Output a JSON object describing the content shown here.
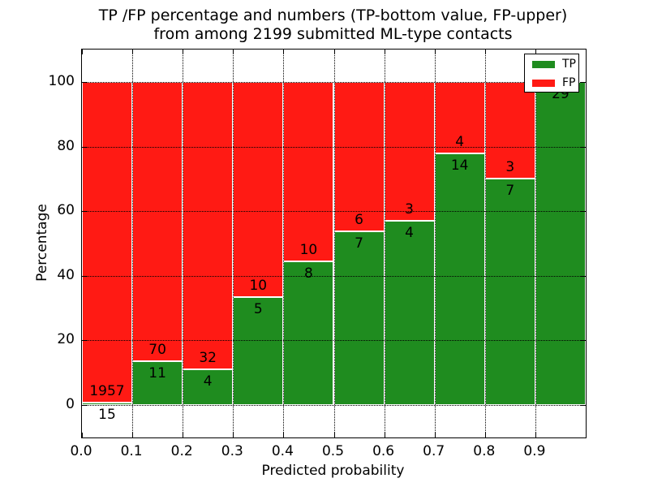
{
  "figure": {
    "title_line1": "TP /FP percentage and numbers (TP-bottom value, FP-upper)",
    "title_line2": "from among 2199 submitted ML-type contacts"
  },
  "axes": {
    "xlabel": "Predicted probability",
    "ylabel": "Percentage",
    "x_tick_labels": [
      "0.0",
      "0.1",
      "0.2",
      "0.3",
      "0.4",
      "0.5",
      "0.6",
      "0.7",
      "0.8",
      "0.9"
    ],
    "x_tick_values": [
      0.0,
      0.1,
      0.2,
      0.3,
      0.4,
      0.5,
      0.6,
      0.7,
      0.8,
      0.9
    ],
    "y_tick_labels": [
      "0",
      "20",
      "40",
      "60",
      "80",
      "100"
    ],
    "y_tick_values": [
      0,
      20,
      40,
      60,
      80,
      100
    ],
    "xlim": [
      0.0,
      1.0
    ],
    "ylim": [
      -10,
      110
    ],
    "grid_style": "dotted"
  },
  "legend": {
    "position": "upper-right",
    "items": [
      {
        "label": "TP",
        "color": "#1f8c1f"
      },
      {
        "label": "FP",
        "color": "#ff1a14"
      }
    ]
  },
  "chart_data": {
    "type": "bar",
    "stacked": true,
    "normalized": "each bin scaled to 100%",
    "title": "TP /FP percentage and numbers (TP-bottom value, FP-upper) from among 2199 submitted ML-type contacts",
    "xlabel": "Predicted probability",
    "ylabel": "Percentage",
    "total_submitted": 2199,
    "bin_width": 0.1,
    "bin_starts": [
      0.0,
      0.1,
      0.2,
      0.3,
      0.4,
      0.5,
      0.6,
      0.7,
      0.8,
      0.9
    ],
    "series": [
      {
        "name": "TP",
        "color": "#1f8c1f",
        "counts": [
          15,
          11,
          4,
          5,
          8,
          7,
          4,
          14,
          7,
          29
        ],
        "pct": [
          0.76,
          13.58,
          11.11,
          33.33,
          44.44,
          53.85,
          57.14,
          77.78,
          70.0,
          100.0
        ]
      },
      {
        "name": "FP",
        "color": "#ff1a14",
        "counts": [
          1957,
          70,
          32,
          10,
          10,
          6,
          3,
          4,
          3,
          0
        ],
        "pct": [
          99.24,
          86.42,
          88.89,
          66.67,
          55.56,
          46.15,
          42.86,
          22.22,
          30.0,
          0.0
        ]
      }
    ],
    "bar_edge_color": "#ffffff",
    "label_note": "TP count printed just below each TP/FP boundary, FP count just above; FP label omitted where FP count is 0"
  }
}
